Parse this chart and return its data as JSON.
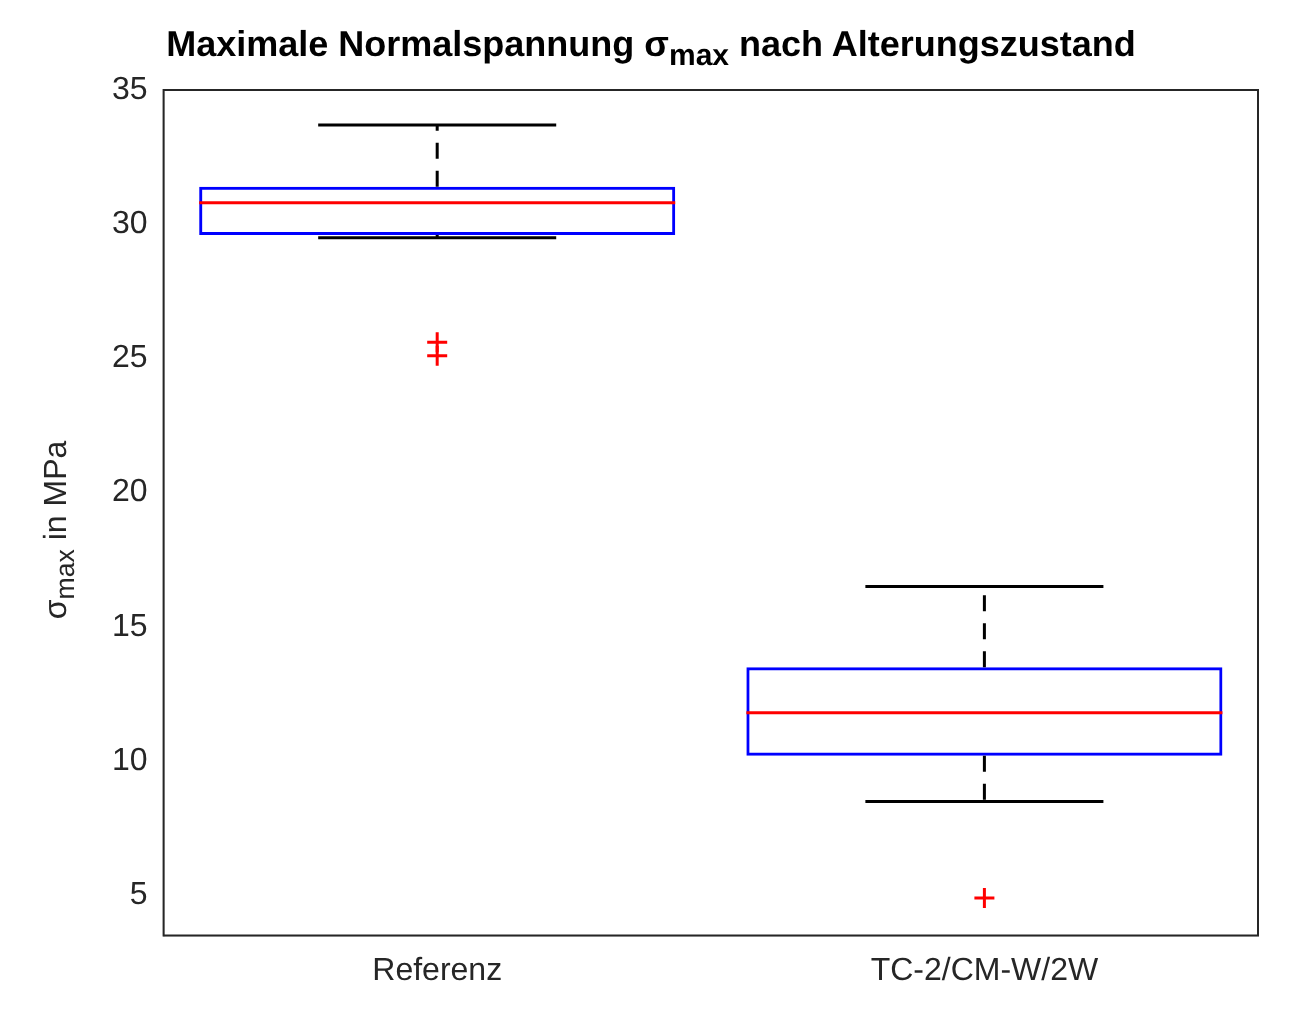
{
  "chart_data": {
    "type": "box",
    "title": "Maximale Normalspannung σ$_{max}$ nach Alterungszustand",
    "ylabel": "σ$_{max}$ in MPa",
    "categories": [
      "Referenz",
      "TC-2/CM-W/2W"
    ],
    "boxes": [
      {
        "low": 29.5,
        "q1": 29.6,
        "median": 30.8,
        "q3": 31.4,
        "high": 33.7,
        "outliers": [
          25.6,
          25.1
        ]
      },
      {
        "low": 8.5,
        "q1": 10.2,
        "median": 11.8,
        "q3": 13.5,
        "high": 16.5,
        "outliers": [
          4.9
        ]
      }
    ],
    "color": "#0000ff",
    "ylim": [
      3.5,
      35
    ],
    "yticks": [
      5,
      10,
      15,
      20,
      25,
      30,
      35
    ],
    "grid": false,
    "legend": false,
    "marker": "cross"
  }
}
